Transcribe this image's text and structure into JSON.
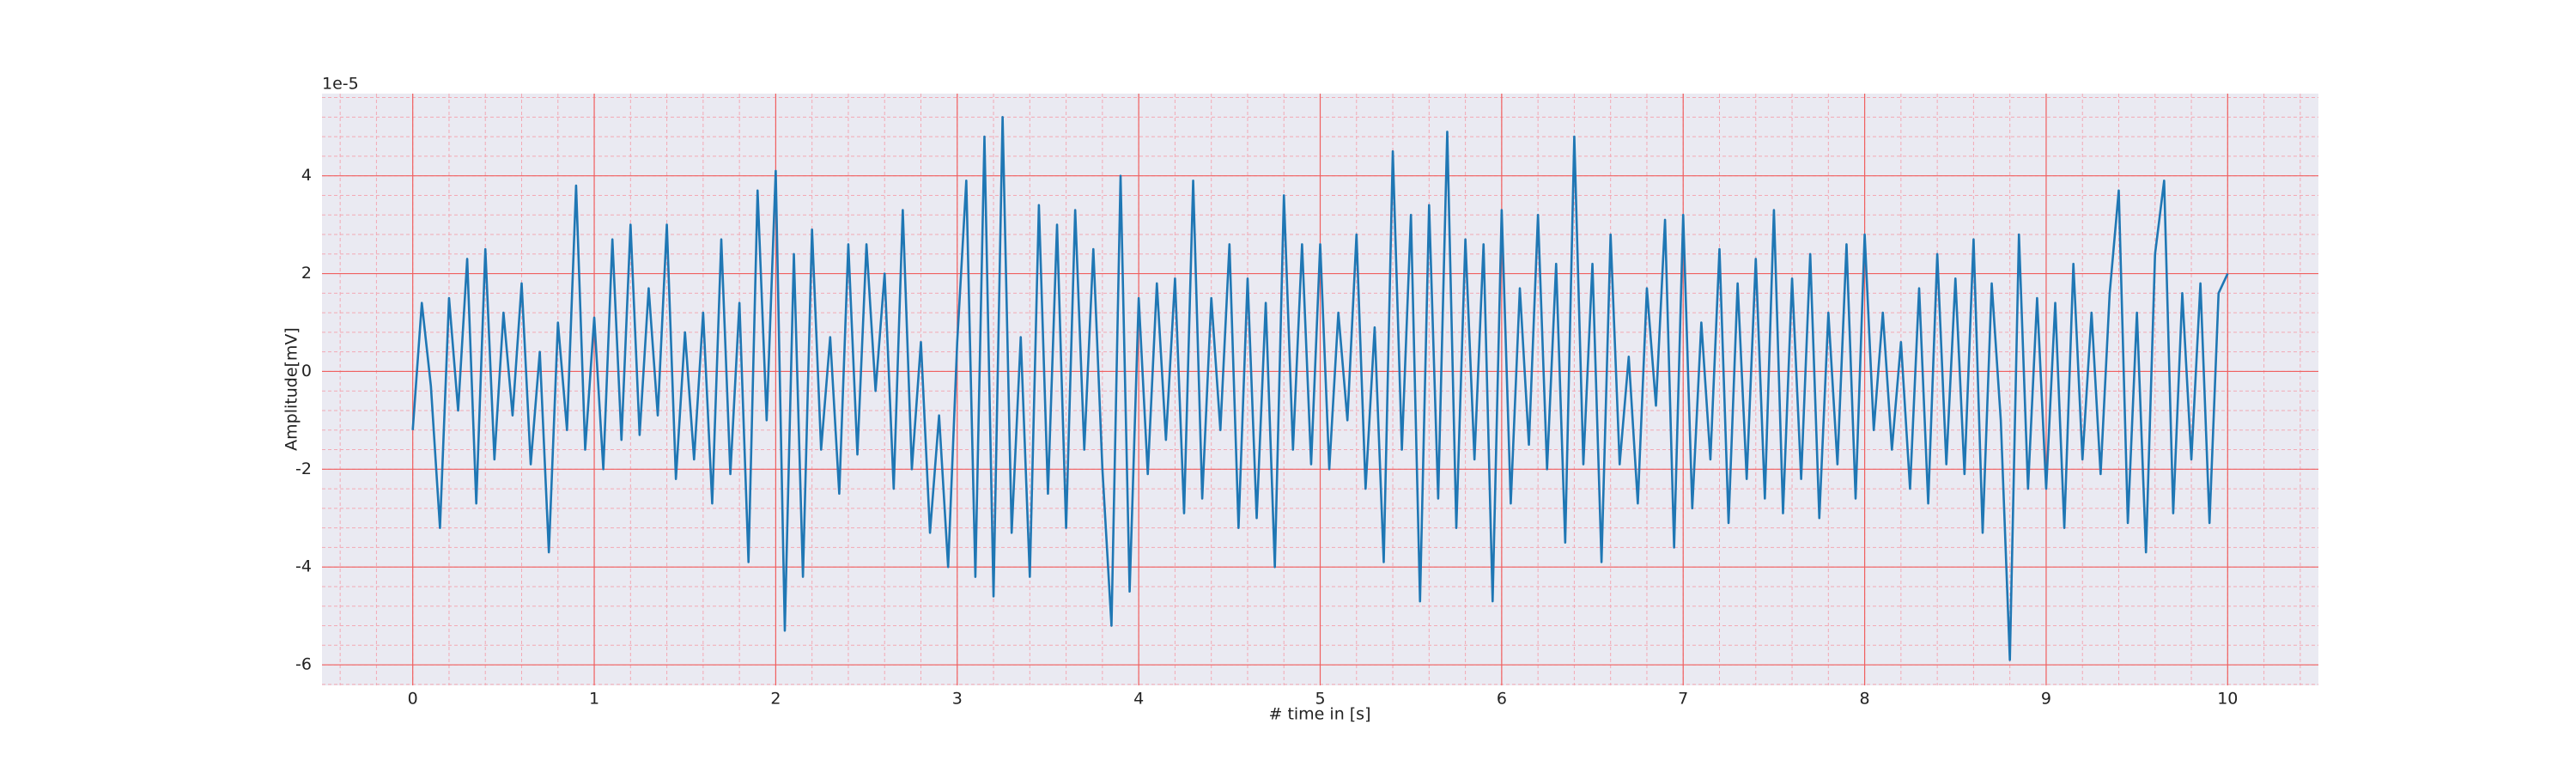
{
  "chart_data": {
    "type": "line",
    "xlabel": "# time in [s]",
    "ylabel": "Amplitude[mV]",
    "y_offset_label": "1e-5",
    "x": [
      0,
      0.05,
      0.1,
      0.15,
      0.2,
      0.25,
      0.3,
      0.35,
      0.4,
      0.45,
      0.5,
      0.55,
      0.6,
      0.65,
      0.7,
      0.75,
      0.8,
      0.85,
      0.9,
      0.95,
      1,
      1.05,
      1.1,
      1.15,
      1.2,
      1.25,
      1.3,
      1.35,
      1.4,
      1.45,
      1.5,
      1.55,
      1.6,
      1.65,
      1.7,
      1.75,
      1.8,
      1.85,
      1.9,
      1.95,
      2,
      2.05,
      2.1,
      2.15,
      2.2,
      2.25,
      2.3,
      2.35,
      2.4,
      2.45,
      2.5,
      2.55,
      2.6,
      2.65,
      2.7,
      2.75,
      2.8,
      2.85,
      2.9,
      2.95,
      3,
      3.05,
      3.1,
      3.15,
      3.2,
      3.25,
      3.3,
      3.35,
      3.4,
      3.45,
      3.5,
      3.55,
      3.6,
      3.65,
      3.7,
      3.75,
      3.8,
      3.85,
      3.9,
      3.95,
      4,
      4.05,
      4.1,
      4.15,
      4.2,
      4.25,
      4.3,
      4.35,
      4.4,
      4.45,
      4.5,
      4.55,
      4.6,
      4.65,
      4.7,
      4.75,
      4.8,
      4.85,
      4.9,
      4.95,
      5,
      5.05,
      5.1,
      5.15,
      5.2,
      5.25,
      5.3,
      5.35,
      5.4,
      5.45,
      5.5,
      5.55,
      5.6,
      5.65,
      5.7,
      5.75,
      5.8,
      5.85,
      5.9,
      5.95,
      6,
      6.05,
      6.1,
      6.15,
      6.2,
      6.25,
      6.3,
      6.35,
      6.4,
      6.45,
      6.5,
      6.55,
      6.6,
      6.65,
      6.7,
      6.75,
      6.8,
      6.85,
      6.9,
      6.95,
      7,
      7.05,
      7.1,
      7.15,
      7.2,
      7.25,
      7.3,
      7.35,
      7.4,
      7.45,
      7.5,
      7.55,
      7.6,
      7.65,
      7.7,
      7.75,
      7.8,
      7.85,
      7.9,
      7.95,
      8,
      8.05,
      8.1,
      8.15,
      8.2,
      8.25,
      8.3,
      8.35,
      8.4,
      8.45,
      8.5,
      8.55,
      8.6,
      8.65,
      8.7,
      8.75,
      8.8,
      8.85,
      8.9,
      8.95,
      9,
      9.05,
      9.1,
      9.15,
      9.2,
      9.25,
      9.3,
      9.35,
      9.4,
      9.45,
      9.5,
      9.55,
      9.6,
      9.65,
      9.7,
      9.75,
      9.8,
      9.85,
      9.9,
      9.95,
      10
    ],
    "series": [
      {
        "color": "#1f77b4",
        "values": [
          -1.2,
          1.4,
          -0.3,
          -3.2,
          1.5,
          -0.8,
          2.3,
          -2.7,
          2.5,
          -1.8,
          1.2,
          -0.9,
          1.8,
          -1.9,
          0.4,
          -3.7,
          1.0,
          -1.2,
          3.8,
          -1.6,
          1.1,
          -2.0,
          2.7,
          -1.4,
          3.0,
          -1.3,
          1.7,
          -0.9,
          3.0,
          -2.2,
          0.8,
          -1.8,
          1.2,
          -2.7,
          2.7,
          -2.1,
          1.4,
          -3.9,
          3.7,
          -1.0,
          4.1,
          -5.3,
          2.4,
          -4.2,
          2.9,
          -1.6,
          0.7,
          -2.5,
          2.6,
          -1.7,
          2.6,
          -0.4,
          2.0,
          -2.4,
          3.3,
          -2.0,
          0.6,
          -3.3,
          -0.9,
          -4.0,
          0.6,
          3.9,
          -4.2,
          4.8,
          -4.6,
          5.2,
          -3.3,
          0.7,
          -4.2,
          3.4,
          -2.5,
          3.0,
          -3.2,
          3.3,
          -1.6,
          2.5,
          -2.0,
          -5.2,
          4.0,
          -4.5,
          1.5,
          -2.1,
          1.8,
          -1.4,
          1.9,
          -2.9,
          3.9,
          -2.6,
          1.5,
          -1.2,
          2.6,
          -3.2,
          1.9,
          -3.0,
          1.4,
          -4.0,
          3.6,
          -1.6,
          2.6,
          -1.9,
          2.6,
          -2.0,
          1.2,
          -1.0,
          2.8,
          -2.4,
          0.9,
          -3.9,
          4.5,
          -1.6,
          3.2,
          -4.7,
          3.4,
          -2.6,
          4.9,
          -3.2,
          2.7,
          -1.8,
          2.6,
          -4.7,
          3.3,
          -2.7,
          1.7,
          -1.5,
          3.2,
          -2.0,
          2.2,
          -3.5,
          4.8,
          -1.9,
          2.2,
          -3.9,
          2.8,
          -1.9,
          0.3,
          -2.7,
          1.7,
          -0.7,
          3.1,
          -3.6,
          3.2,
          -2.8,
          1.0,
          -1.8,
          2.5,
          -3.1,
          1.8,
          -2.2,
          2.3,
          -2.6,
          3.3,
          -2.9,
          1.9,
          -2.2,
          2.4,
          -3.0,
          1.2,
          -1.9,
          2.6,
          -2.6,
          2.8,
          -1.2,
          1.2,
          -1.6,
          0.6,
          -2.4,
          1.7,
          -2.7,
          2.4,
          -1.9,
          1.9,
          -2.1,
          2.7,
          -3.3,
          1.8,
          -1.0,
          -5.9,
          2.8,
          -2.4,
          1.5,
          -2.4,
          1.4,
          -3.2,
          2.2,
          -1.8,
          1.2,
          -2.1,
          1.6,
          3.7,
          -3.1,
          1.2,
          -3.7,
          2.4,
          3.9,
          -2.9,
          1.6,
          -1.8,
          1.8,
          -3.1,
          1.6,
          2.0
        ]
      }
    ],
    "xlim": [
      -0.5,
      10.5
    ],
    "xticks": [
      0,
      1,
      2,
      3,
      4,
      5,
      6,
      7,
      8,
      9,
      10
    ],
    "ylim": [
      -6.42,
      5.68
    ],
    "yticks": [
      -6,
      -4,
      -2,
      0,
      2,
      4
    ],
    "grid": true,
    "minor_grid": {
      "x_step": 0.2,
      "y_step": 0.4
    }
  }
}
